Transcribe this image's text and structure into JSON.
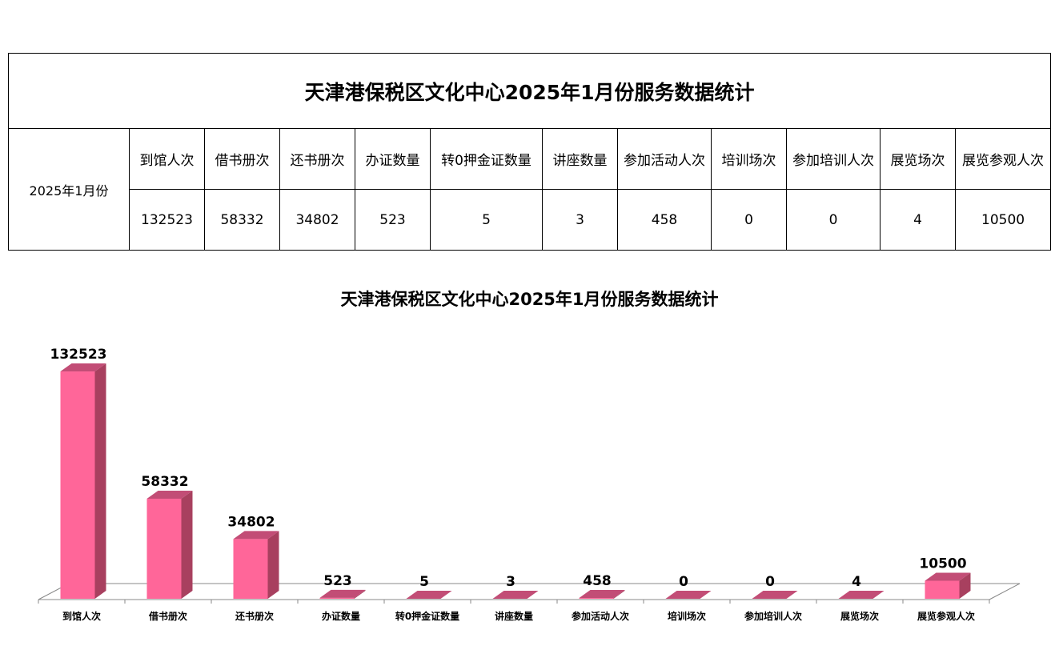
{
  "table": {
    "title": "天津港保税区文化中心2025年1月份服务数据统计",
    "month": "2025年1月份",
    "headers": [
      "到馆人次",
      "借书册次",
      "还书册次",
      "办证数量",
      "转0押金证数量",
      "讲座数量",
      "参加活动人次",
      "培训场次",
      "参加培训人次",
      "展览场次",
      "展览参观人次"
    ],
    "values": [
      "132523",
      "58332",
      "34802",
      "523",
      "5",
      "3",
      "458",
      "0",
      "0",
      "4",
      "10500"
    ]
  },
  "chart_data": {
    "type": "bar",
    "title": "天津港保税区文化中心2025年1月份服务数据统计",
    "categories": [
      "到馆人次",
      "借书册次",
      "还书册次",
      "办证数量",
      "转0押金证数量",
      "讲座数量",
      "参加活动人次",
      "培训场次",
      "参加培训人次",
      "展览场次",
      "展览参观人次"
    ],
    "values": [
      132523,
      58332,
      34802,
      523,
      5,
      3,
      458,
      0,
      0,
      4,
      10500
    ],
    "ylim": [
      0,
      140000
    ],
    "grid": false,
    "legend": "none",
    "style": "3d",
    "colors": {
      "front": "#ff6699",
      "side": "#a8405f",
      "top": "#c24d76",
      "floor": "#888888"
    }
  }
}
